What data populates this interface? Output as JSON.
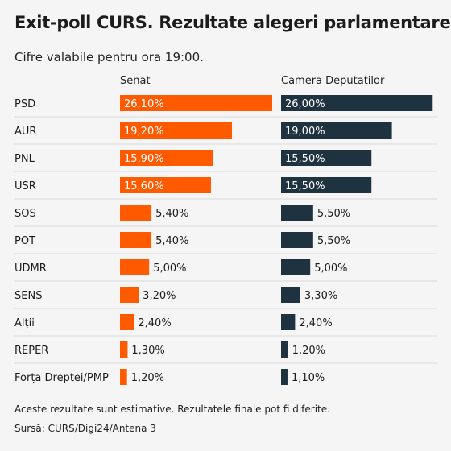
{
  "title": "Exit-poll CURS. Rezultate alegeri parlamentare",
  "subtitle": "Cifre valabile pentru ora 19:00.",
  "footnote": "Aceste rezultate sunt estimative. Rezultatele finale pot fi diferite.",
  "source": "Sursă: CURS/Digi24/Antena 3",
  "colors": {
    "senat": "#ff5a00",
    "camera": "#1e3240",
    "divider": "#d9d9d9"
  },
  "chart_data": {
    "type": "bar",
    "orientation": "horizontal",
    "categories": [
      "PSD",
      "AUR",
      "PNL",
      "USR",
      "SOS",
      "POT",
      "UDMR",
      "SENS",
      "Alții",
      "REPER",
      "Forța Dreptei/PMP"
    ],
    "series": [
      {
        "name": "Senat",
        "values": [
          26.1,
          19.2,
          15.9,
          15.6,
          5.4,
          5.4,
          5.0,
          3.2,
          2.4,
          1.3,
          1.2
        ],
        "labels": [
          "26,10%",
          "19,20%",
          "15,90%",
          "15,60%",
          "5,40%",
          "5,40%",
          "5,00%",
          "3,20%",
          "2,40%",
          "1,30%",
          "1,20%"
        ]
      },
      {
        "name": "Camera Deputaților",
        "values": [
          26.0,
          19.0,
          15.5,
          15.5,
          5.5,
          5.5,
          5.0,
          3.3,
          2.4,
          1.2,
          1.1
        ],
        "labels": [
          "26,00%",
          "19,00%",
          "15,50%",
          "15,50%",
          "5,50%",
          "5,50%",
          "5,00%",
          "3,30%",
          "2,40%",
          "1,20%",
          "1,10%"
        ]
      }
    ]
  }
}
